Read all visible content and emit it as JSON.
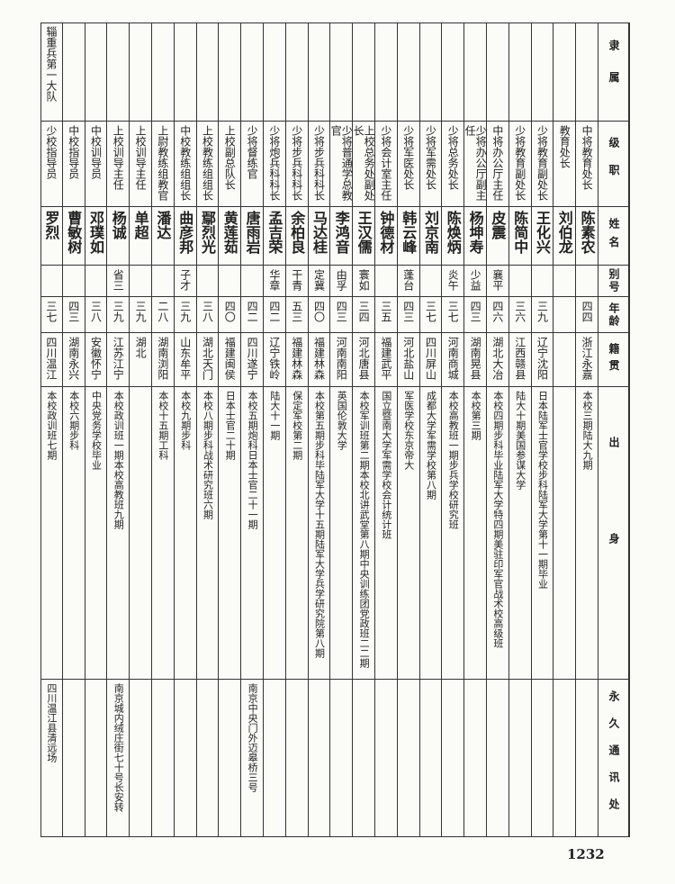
{
  "header": [
    "隶属",
    "级职",
    "姓名",
    "别号",
    "年龄",
    "籍贯",
    "出身",
    "永久通讯处"
  ],
  "rows": [
    {
      "rank": "中将教育处长",
      "name": "陈素农",
      "age": "四四",
      "hometown": "浙江永嘉",
      "background": "本校三期陆大九期"
    },
    {
      "rank": "教育处长",
      "name": "刘伯龙"
    },
    {
      "rank": "少将教育副处长",
      "name": "王化兴",
      "age": "三九",
      "hometown": "辽宁沈阳",
      "background": "日本陆军士官学校步科陆军大学第十一期毕业"
    },
    {
      "rank": "少将教育副处长",
      "name": "陈简中",
      "age": "三六",
      "hometown": "江西赣县",
      "background": "陆大十期美国参谋大学"
    },
    {
      "rank": "中将办公厅主任",
      "name": "皮震",
      "alias": "襄平",
      "age": "四六",
      "hometown": "湖北大冶",
      "background": "本校四期步科毕业陆军大学特四期美驻印军官战术校高级班"
    },
    {
      "rank": "少将办公厅副主任",
      "name": "杨坤寿",
      "alias": "少益",
      "age": "四三",
      "hometown": "湖南晃县",
      "background": "本校第三期"
    },
    {
      "rank": "少将总务处长",
      "name": "陈焕炳",
      "alias": "炎午",
      "age": "三七",
      "hometown": "河南商城",
      "background": "本校高教班一期步兵学校研究班"
    },
    {
      "rank": "少将军需处长",
      "name": "刘京南",
      "age": "三七",
      "hometown": "四川屏山",
      "background": "成都大学军需学校第八期"
    },
    {
      "rank": "少将军医处长",
      "name": "韩云峰",
      "alias": "蓬台",
      "age": "四三",
      "hometown": "河北盐山",
      "background": "军医学校东京帝大"
    },
    {
      "rank": "少将会计室主任",
      "name": "钟德材",
      "age": "三五",
      "hometown": "福建武平",
      "background": "国立暨南大学军需学校会计统计班"
    },
    {
      "rank": "上校总务处副处长",
      "name": "王汉儒",
      "alias": "寰如",
      "age": "三四",
      "hometown": "河北唐县",
      "background": "本校军训班第二期本校北讲武堂第八期中央训练团党政班二二期"
    },
    {
      "rank": "少将普通学总教官",
      "name": "李鸿音",
      "alias": "由孚",
      "age": "四三",
      "hometown": "河南南阳",
      "background": "英国伦敦大学"
    },
    {
      "rank": "少将步兵科科长",
      "name": "马达桂",
      "alias": "定冀",
      "age": "四〇",
      "hometown": "福建林森",
      "background": "本校第五期步科毕陆军大学十五期陆军大学兵学研究院第八期"
    },
    {
      "rank": "少将步兵科科长",
      "name": "余柏良",
      "alias": "干青",
      "age": "五三",
      "hometown": "福建林森",
      "background": "保定军校第二期"
    },
    {
      "rank": "少将炮兵科科长",
      "name": "孟吉荣",
      "alias": "华章",
      "age": "四二",
      "hometown": "辽宁铁岭",
      "background": "陆大十一期"
    },
    {
      "rank": "少将督练官",
      "name": "唐雨岩",
      "age": "四二",
      "hometown": "四川遂宁",
      "background": "本校五期炮科日本士官二十一期",
      "address": "南京中央门外迈皋桥三号"
    },
    {
      "rank": "上校副总队长",
      "name": "黄莲茹",
      "age": "四〇",
      "hometown": "福建闽侯",
      "background": "日本士官二十期"
    },
    {
      "rank": "上校教练组组长",
      "name": "鄢烈光",
      "age": "三八",
      "hometown": "湖北天门",
      "background": "本校八期步科战术研究班六期"
    },
    {
      "rank": "中校教练组组长",
      "name": "曲彦邦",
      "alias": "子才",
      "age": "三九",
      "hometown": "山东牟平",
      "background": "本校九期步科"
    },
    {
      "rank": "上尉教练组教官",
      "name": "潘达",
      "age": "二八",
      "hometown": "湖南浏阳",
      "background": "本校十五期工科"
    },
    {
      "rank": "上校训导主任",
      "name": "单超",
      "age": "三九",
      "hometown": "湖北"
    },
    {
      "rank": "上校训导主任",
      "name": "杨诚",
      "alias": "省三",
      "age": "三九",
      "hometown": "江苏江宁",
      "background": "本校政训班一期本校高教班九期",
      "address": "南京城内绒庄街七十号长安转"
    },
    {
      "rank": "中校训导员",
      "name": "邓璞如",
      "age": "三八",
      "hometown": "安徽怀宁",
      "background": "中央党务学校毕业"
    },
    {
      "rank": "中校指导员",
      "name": "曹敏树",
      "age": "四三",
      "hometown": "湖南永兴",
      "background": "本校六期步科"
    },
    {
      "unit": "辎重兵第一大队",
      "rank": "少校指导员",
      "name": "罗烈",
      "age": "三七",
      "hometown": "四川温江",
      "background": "本校政训班七期",
      "address": "四川温江县清远场"
    }
  ],
  "page_number": "1232"
}
